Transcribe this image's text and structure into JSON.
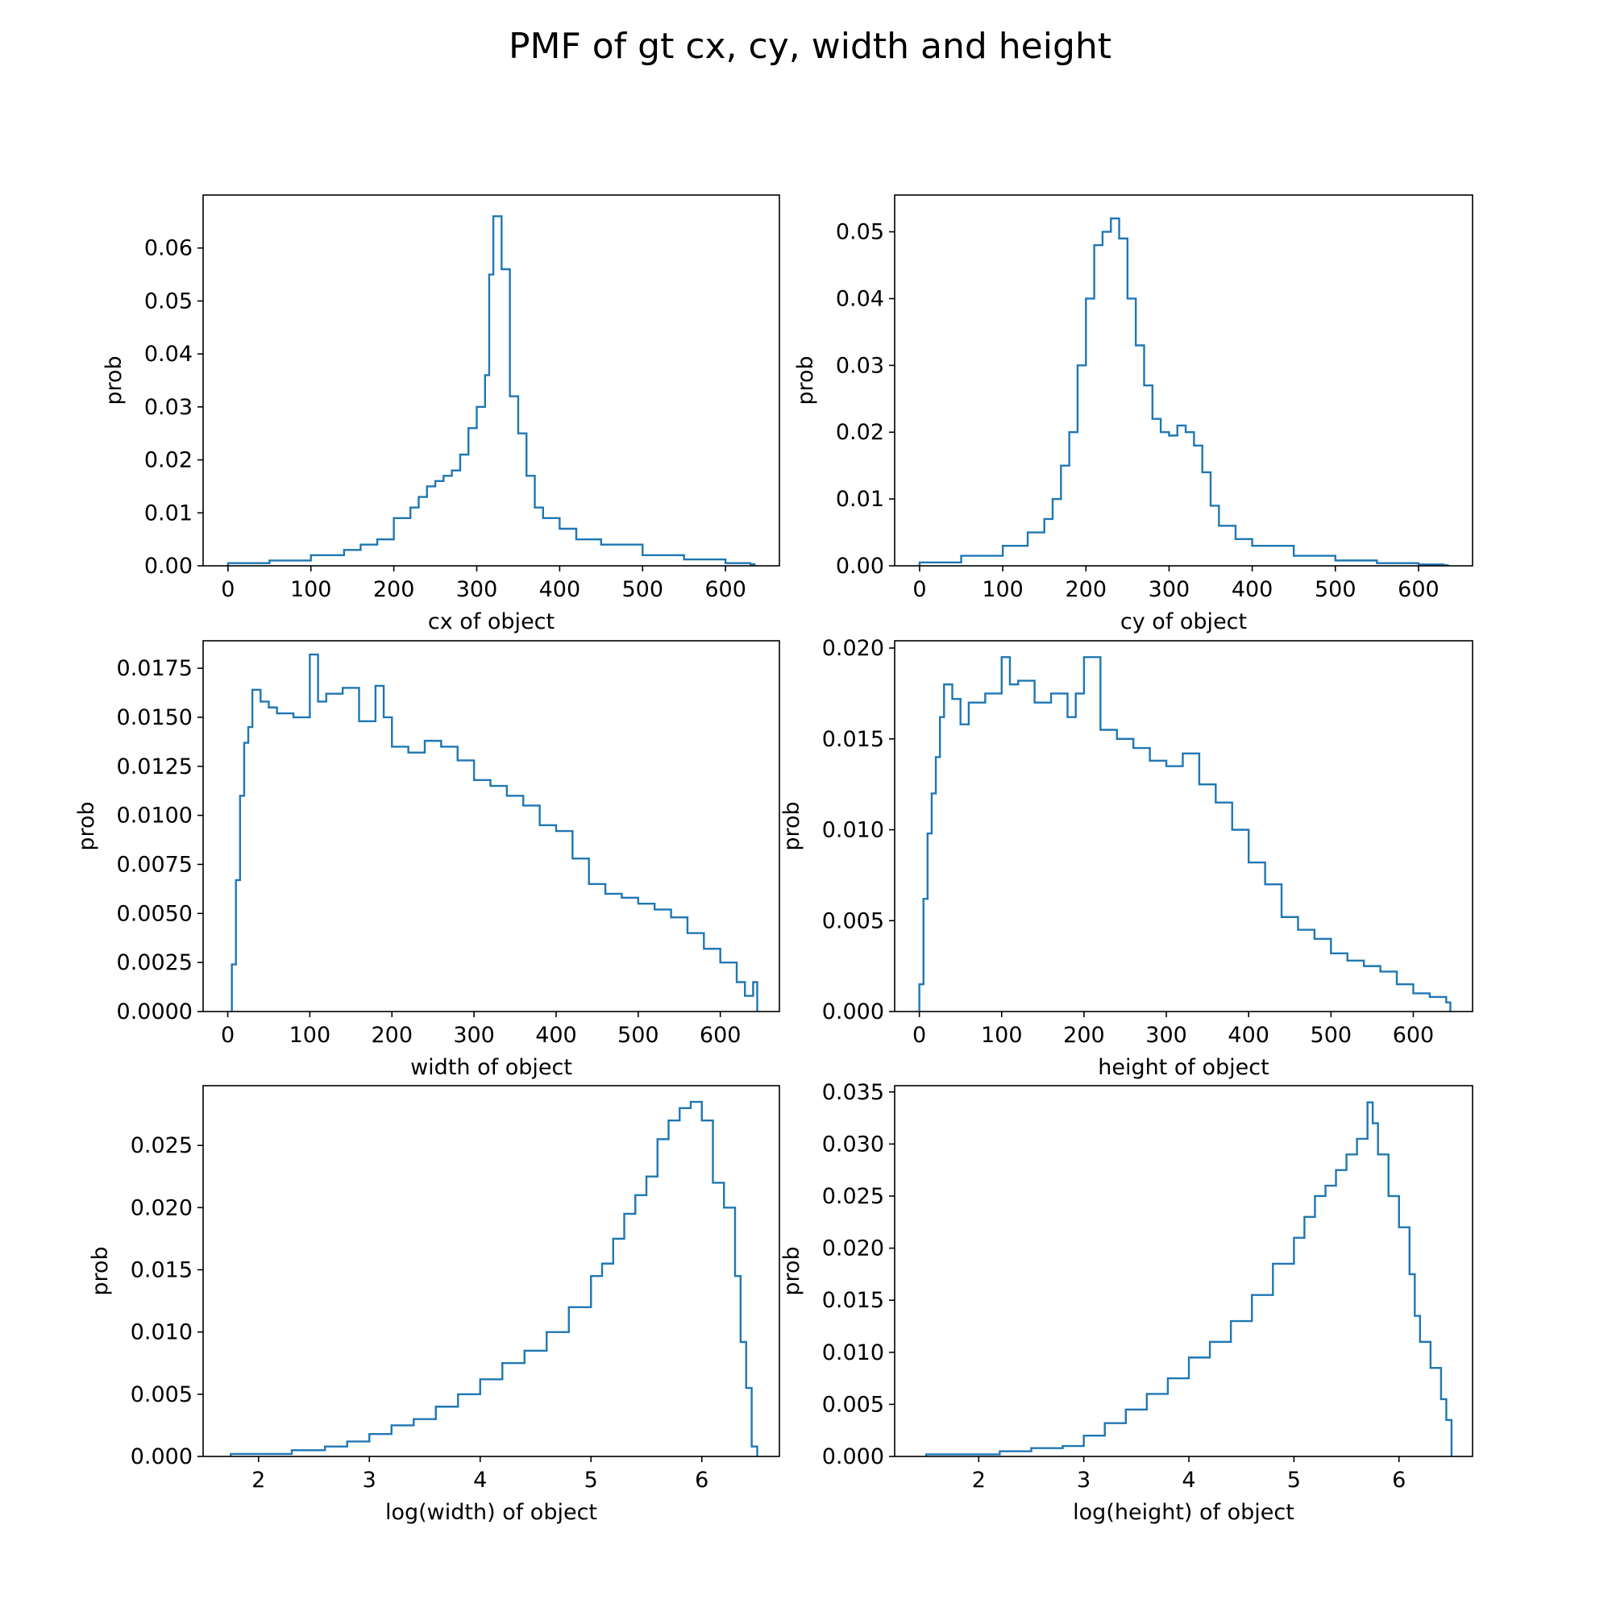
{
  "figure": {
    "title": "PMF of gt cx, cy, width and height",
    "line_color": "#1f77b4"
  },
  "chart_data": [
    {
      "type": "line",
      "style": "step histogram",
      "title": "",
      "xlabel": "cx of object",
      "ylabel": "prob",
      "xlim": [
        -30,
        665
      ],
      "ylim": [
        0,
        0.07
      ],
      "xticks": [
        0,
        100,
        200,
        300,
        400,
        500,
        600
      ],
      "xtick_labels": [
        "0",
        "100",
        "200",
        "300",
        "400",
        "500",
        "600"
      ],
      "yticks": [
        0,
        0.01,
        0.02,
        0.03,
        0.04,
        0.05,
        0.06
      ],
      "ytick_labels": [
        "0.00",
        "0.01",
        "0.02",
        "0.03",
        "0.04",
        "0.05",
        "0.06"
      ],
      "grid": false,
      "series": [
        {
          "x": [
            0,
            50,
            100,
            140,
            160,
            180,
            200,
            220,
            230,
            240,
            250,
            260,
            270,
            280,
            290,
            300,
            310,
            315,
            320,
            330,
            340,
            350,
            360,
            370,
            380,
            400,
            420,
            450,
            500,
            550,
            600,
            630
          ],
          "y": [
            0.0005,
            0.001,
            0.002,
            0.003,
            0.004,
            0.005,
            0.009,
            0.011,
            0.013,
            0.015,
            0.016,
            0.017,
            0.018,
            0.021,
            0.026,
            0.03,
            0.036,
            0.055,
            0.066,
            0.056,
            0.032,
            0.025,
            0.017,
            0.011,
            0.009,
            0.007,
            0.005,
            0.004,
            0.002,
            0.0012,
            0.0005,
            0.0003
          ]
        }
      ]
    },
    {
      "type": "line",
      "style": "step histogram",
      "title": "",
      "xlabel": "cy of object",
      "ylabel": "prob",
      "xlim": [
        -30,
        665
      ],
      "ylim": [
        0,
        0.0555
      ],
      "xticks": [
        0,
        100,
        200,
        300,
        400,
        500,
        600
      ],
      "xtick_labels": [
        "0",
        "100",
        "200",
        "300",
        "400",
        "500",
        "600"
      ],
      "yticks": [
        0,
        0.01,
        0.02,
        0.03,
        0.04,
        0.05
      ],
      "ytick_labels": [
        "0.00",
        "0.01",
        "0.02",
        "0.03",
        "0.04",
        "0.05"
      ],
      "grid": false,
      "series": [
        {
          "x": [
            0,
            50,
            100,
            130,
            150,
            160,
            170,
            180,
            190,
            200,
            210,
            220,
            230,
            240,
            250,
            260,
            270,
            280,
            290,
            300,
            310,
            320,
            330,
            340,
            350,
            360,
            380,
            400,
            450,
            500,
            550,
            600,
            630
          ],
          "y": [
            0.0005,
            0.0015,
            0.003,
            0.005,
            0.007,
            0.01,
            0.015,
            0.02,
            0.03,
            0.04,
            0.048,
            0.05,
            0.052,
            0.049,
            0.04,
            0.033,
            0.027,
            0.022,
            0.02,
            0.0195,
            0.021,
            0.02,
            0.018,
            0.014,
            0.009,
            0.006,
            0.004,
            0.003,
            0.0015,
            0.0008,
            0.0004,
            0.0002,
            0.0001
          ]
        }
      ]
    },
    {
      "type": "line",
      "style": "step histogram",
      "title": "",
      "xlabel": "width of object",
      "ylabel": "prob",
      "xlim": [
        -30,
        672
      ],
      "ylim": [
        0,
        0.0189
      ],
      "xticks": [
        0,
        100,
        200,
        300,
        400,
        500,
        600
      ],
      "xtick_labels": [
        "0",
        "100",
        "200",
        "300",
        "400",
        "500",
        "600"
      ],
      "yticks": [
        0,
        0.0025,
        0.005,
        0.0075,
        0.01,
        0.0125,
        0.015,
        0.0175
      ],
      "ytick_labels": [
        "0.0000",
        "0.0025",
        "0.0050",
        "0.0075",
        "0.0100",
        "0.0125",
        "0.0150",
        "0.0175"
      ],
      "grid": false,
      "series": [
        {
          "x": [
            5,
            10,
            15,
            20,
            25,
            30,
            40,
            50,
            60,
            80,
            100,
            110,
            120,
            140,
            160,
            180,
            190,
            200,
            220,
            240,
            260,
            280,
            300,
            320,
            340,
            360,
            380,
            400,
            420,
            440,
            460,
            480,
            500,
            520,
            540,
            560,
            580,
            600,
            620,
            630,
            640
          ],
          "y": [
            0.0024,
            0.0067,
            0.011,
            0.0137,
            0.0145,
            0.0164,
            0.0158,
            0.0155,
            0.0152,
            0.015,
            0.0182,
            0.0158,
            0.0162,
            0.0165,
            0.0148,
            0.0166,
            0.015,
            0.0135,
            0.0132,
            0.0138,
            0.0135,
            0.0128,
            0.0118,
            0.0115,
            0.011,
            0.0105,
            0.0095,
            0.0092,
            0.0078,
            0.0065,
            0.006,
            0.0058,
            0.0055,
            0.0052,
            0.0048,
            0.004,
            0.0032,
            0.0025,
            0.0015,
            0.0008,
            0.0015
          ]
        }
      ]
    },
    {
      "type": "line",
      "style": "step histogram",
      "title": "",
      "xlabel": "height of object",
      "ylabel": "prob",
      "xlim": [
        -30,
        672
      ],
      "ylim": [
        0,
        0.0204
      ],
      "xticks": [
        0,
        100,
        200,
        300,
        400,
        500,
        600
      ],
      "xtick_labels": [
        "0",
        "100",
        "200",
        "300",
        "400",
        "500",
        "600"
      ],
      "yticks": [
        0,
        0.005,
        0.01,
        0.015,
        0.02
      ],
      "ytick_labels": [
        "0.000",
        "0.005",
        "0.010",
        "0.015",
        "0.020"
      ],
      "grid": false,
      "series": [
        {
          "x": [
            0,
            5,
            10,
            15,
            20,
            25,
            30,
            40,
            50,
            60,
            80,
            100,
            110,
            120,
            140,
            160,
            180,
            190,
            200,
            220,
            240,
            260,
            280,
            300,
            320,
            340,
            360,
            380,
            400,
            420,
            440,
            460,
            480,
            500,
            520,
            540,
            560,
            580,
            600,
            620,
            640
          ],
          "y": [
            0.0015,
            0.0062,
            0.0098,
            0.012,
            0.014,
            0.0162,
            0.018,
            0.0172,
            0.0158,
            0.017,
            0.0175,
            0.0195,
            0.018,
            0.0182,
            0.017,
            0.0175,
            0.0162,
            0.0175,
            0.0195,
            0.0155,
            0.015,
            0.0145,
            0.0138,
            0.0135,
            0.0142,
            0.0125,
            0.0115,
            0.01,
            0.0082,
            0.007,
            0.0052,
            0.0045,
            0.004,
            0.0032,
            0.0028,
            0.0025,
            0.0022,
            0.0015,
            0.001,
            0.0008,
            0.0005
          ]
        }
      ]
    },
    {
      "type": "line",
      "style": "step histogram",
      "title": "",
      "xlabel": "log(width) of object",
      "ylabel": "prob",
      "xlim": [
        1.5,
        6.7
      ],
      "ylim": [
        0,
        0.0298
      ],
      "xticks": [
        2,
        3,
        4,
        5,
        6
      ],
      "xtick_labels": [
        "2",
        "3",
        "4",
        "5",
        "6"
      ],
      "yticks": [
        0,
        0.005,
        0.01,
        0.015,
        0.02,
        0.025
      ],
      "ytick_labels": [
        "0.000",
        "0.005",
        "0.010",
        "0.015",
        "0.020",
        "0.025"
      ],
      "grid": false,
      "series": [
        {
          "x": [
            1.75,
            2.3,
            2.6,
            2.8,
            3.0,
            3.2,
            3.4,
            3.6,
            3.8,
            4.0,
            4.2,
            4.4,
            4.6,
            4.8,
            5.0,
            5.1,
            5.2,
            5.3,
            5.4,
            5.5,
            5.6,
            5.7,
            5.8,
            5.9,
            6.0,
            6.1,
            6.2,
            6.3,
            6.35,
            6.4,
            6.45
          ],
          "y": [
            0.0002,
            0.0005,
            0.0008,
            0.0012,
            0.0018,
            0.0025,
            0.003,
            0.004,
            0.005,
            0.0062,
            0.0075,
            0.0085,
            0.01,
            0.012,
            0.0145,
            0.0155,
            0.0175,
            0.0195,
            0.021,
            0.0225,
            0.0255,
            0.027,
            0.028,
            0.0285,
            0.027,
            0.022,
            0.02,
            0.0145,
            0.0092,
            0.0055,
            0.0008
          ]
        }
      ]
    },
    {
      "type": "line",
      "style": "step histogram",
      "title": "",
      "xlabel": "log(height) of object",
      "ylabel": "prob",
      "xlim": [
        1.2,
        6.7
      ],
      "ylim": [
        0,
        0.0356
      ],
      "xticks": [
        2,
        3,
        4,
        5,
        6
      ],
      "xtick_labels": [
        "2",
        "3",
        "4",
        "5",
        "6"
      ],
      "yticks": [
        0,
        0.005,
        0.01,
        0.015,
        0.02,
        0.025,
        0.03,
        0.035
      ],
      "ytick_labels": [
        "0.000",
        "0.005",
        "0.010",
        "0.015",
        "0.020",
        "0.025",
        "0.030",
        "0.035"
      ],
      "grid": false,
      "series": [
        {
          "x": [
            1.5,
            2.2,
            2.5,
            2.8,
            3.0,
            3.2,
            3.4,
            3.6,
            3.8,
            4.0,
            4.2,
            4.4,
            4.6,
            4.8,
            5.0,
            5.1,
            5.2,
            5.3,
            5.4,
            5.5,
            5.6,
            5.7,
            5.75,
            5.8,
            5.9,
            6.0,
            6.1,
            6.15,
            6.2,
            6.3,
            6.4,
            6.45
          ],
          "y": [
            0.0002,
            0.0005,
            0.0008,
            0.001,
            0.002,
            0.0032,
            0.0045,
            0.006,
            0.0075,
            0.0095,
            0.011,
            0.013,
            0.0155,
            0.0185,
            0.021,
            0.023,
            0.025,
            0.026,
            0.0275,
            0.029,
            0.0305,
            0.034,
            0.032,
            0.029,
            0.025,
            0.022,
            0.0175,
            0.0135,
            0.011,
            0.0085,
            0.0055,
            0.0035
          ]
        }
      ]
    }
  ]
}
